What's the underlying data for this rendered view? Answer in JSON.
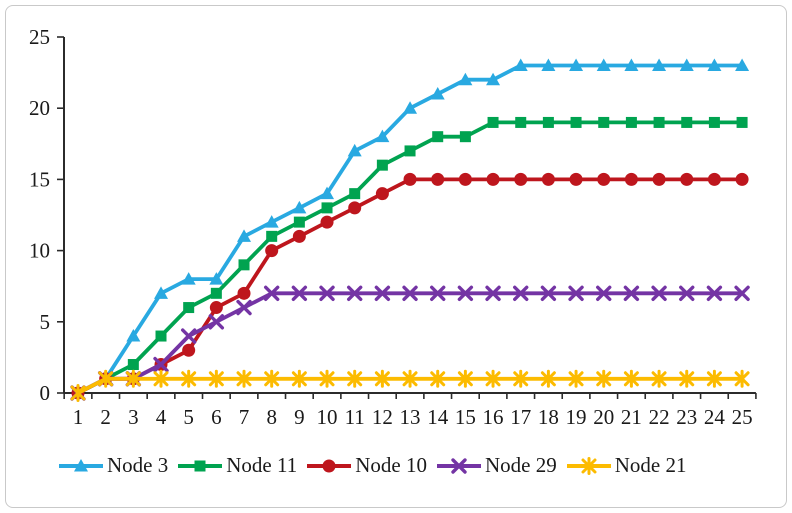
{
  "chart_data": {
    "type": "line",
    "title": "",
    "xlabel": "",
    "ylabel": "",
    "x": [
      1,
      2,
      3,
      4,
      5,
      6,
      7,
      8,
      9,
      10,
      11,
      12,
      13,
      14,
      15,
      16,
      17,
      18,
      19,
      20,
      21,
      22,
      23,
      24,
      25
    ],
    "x_tick_labels": [
      "1",
      "2",
      "3",
      "4",
      "5",
      "6",
      "7",
      "8",
      "9",
      "10",
      "11",
      "12",
      "13",
      "14",
      "15",
      "16",
      "17",
      "18",
      "19",
      "20",
      "21",
      "22",
      "23",
      "24",
      "25"
    ],
    "y_tick_labels": [
      "0",
      "5",
      "10",
      "15",
      "20",
      "25"
    ],
    "ylim": [
      0,
      25
    ],
    "y_tick_step": 5,
    "grid": "off",
    "legend_position": "bottom",
    "series": [
      {
        "name": "Node 3",
        "color": "#29A9E1",
        "marker": "triangle",
        "values": [
          0,
          1,
          4,
          7,
          8,
          8,
          11,
          12,
          13,
          14,
          17,
          18,
          20,
          21,
          22,
          22,
          23,
          23,
          23,
          23,
          23,
          23,
          23,
          23,
          23
        ]
      },
      {
        "name": "Node 11",
        "color": "#00A350",
        "marker": "square",
        "values": [
          0,
          1,
          2,
          4,
          6,
          7,
          9,
          11,
          12,
          13,
          14,
          16,
          17,
          18,
          18,
          19,
          19,
          19,
          19,
          19,
          19,
          19,
          19,
          19,
          19
        ]
      },
      {
        "name": "Node 10",
        "color": "#BE161D",
        "marker": "circle",
        "values": [
          0,
          1,
          1,
          2,
          3,
          6,
          7,
          10,
          11,
          12,
          13,
          14,
          15,
          15,
          15,
          15,
          15,
          15,
          15,
          15,
          15,
          15,
          15,
          15,
          15
        ]
      },
      {
        "name": "Node 29",
        "color": "#7434A4",
        "marker": "x",
        "values": [
          0,
          1,
          1,
          2,
          4,
          5,
          6,
          7,
          7,
          7,
          7,
          7,
          7,
          7,
          7,
          7,
          7,
          7,
          7,
          7,
          7,
          7,
          7,
          7,
          7
        ]
      },
      {
        "name": "Node 21",
        "color": "#FCBB00",
        "marker": "star",
        "values": [
          0,
          1,
          1,
          1,
          1,
          1,
          1,
          1,
          1,
          1,
          1,
          1,
          1,
          1,
          1,
          1,
          1,
          1,
          1,
          1,
          1,
          1,
          1,
          1,
          1
        ]
      }
    ]
  }
}
